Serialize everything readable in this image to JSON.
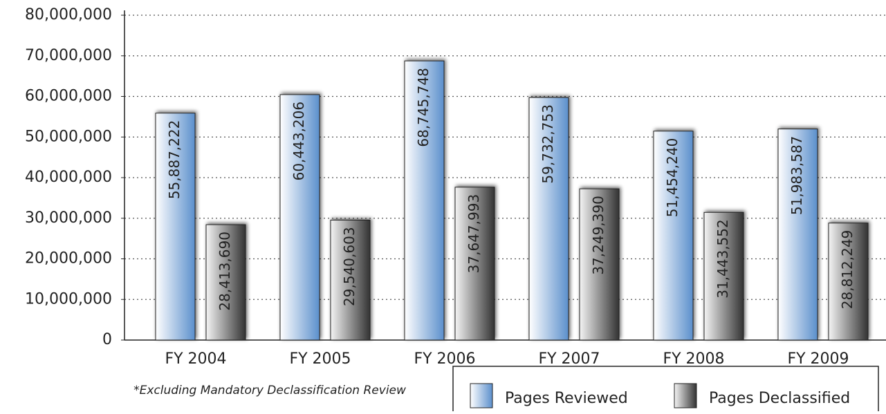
{
  "chart_data": {
    "type": "bar",
    "categories": [
      "FY 2004",
      "FY 2005",
      "FY 2006",
      "FY 2007",
      "FY 2008",
      "FY 2009"
    ],
    "series": [
      {
        "name": "Pages Reviewed",
        "color": "#5b8fcc",
        "values": [
          55887222,
          60443206,
          68745748,
          59732753,
          51454240,
          51983587
        ],
        "value_labels": [
          "55,887,222",
          "60,443,206",
          "68,745,748",
          "59,732,753",
          "51,454,240",
          "51,983,587"
        ]
      },
      {
        "name": "Pages Declassified",
        "color": "#333333",
        "values": [
          28413690,
          29540603,
          37647993,
          37249390,
          31443552,
          28812249
        ],
        "value_labels": [
          "28,413,690",
          "29,540,603",
          "37,647,993",
          "37,249,390",
          "31,443,552",
          "28,812,249"
        ]
      }
    ],
    "ylim": [
      0,
      80000000
    ],
    "yticks": [
      0,
      {
        "value": 10000000,
        "label": "10,000,000"
      },
      {
        "value": 20000000,
        "label": "20,000,000"
      },
      {
        "value": 30000000,
        "label": "30,000,000"
      },
      {
        "value": 40000000,
        "label": "40,000,000"
      },
      {
        "value": 50000000,
        "label": "50,000,000"
      },
      {
        "value": 60000000,
        "label": "60,000,000"
      },
      {
        "value": 70000000,
        "label": "70,000,000"
      },
      {
        "value": 80000000,
        "label": "80,000,000"
      }
    ],
    "grid": true,
    "annotation": "*Excluding Mandatory Declassification Review"
  }
}
